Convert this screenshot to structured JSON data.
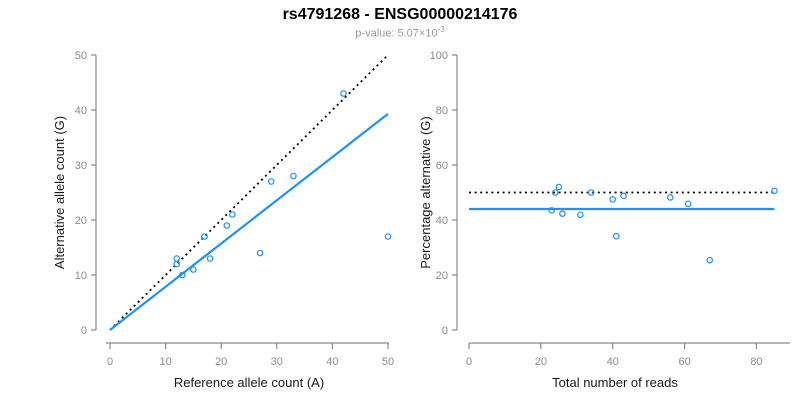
{
  "header": {
    "title": "rs4791268 - ENSG00000214176",
    "pvalue_base": "p-value: 5.07×10",
    "pvalue_exponent": "-3"
  },
  "colors": {
    "accent_blue": "#1E90FF",
    "dotted_line_black": "#000000",
    "axis_gray": "#8a8a8a",
    "tick_label_gray": "#8c8c8c",
    "axis_title_color": "#1a1a1a",
    "subtitle_gray": "#9a9a9a"
  },
  "chart_data": [
    {
      "type": "scatter",
      "name": "allele-counts",
      "xlabel": "Reference allele count (A)",
      "ylabel": "Alternative allele count (G)",
      "xlim": [
        0,
        50
      ],
      "ylim": [
        0,
        50
      ],
      "xticks": [
        0,
        10,
        20,
        30,
        40,
        50
      ],
      "yticks": [
        0,
        10,
        20,
        30,
        40,
        50
      ],
      "grid": false,
      "points": [
        [
          12,
          12
        ],
        [
          12,
          13
        ],
        [
          13,
          10
        ],
        [
          15,
          11
        ],
        [
          17,
          17
        ],
        [
          18,
          13
        ],
        [
          21,
          19
        ],
        [
          22,
          21
        ],
        [
          27,
          14
        ],
        [
          29,
          27
        ],
        [
          33,
          28
        ],
        [
          42,
          43
        ],
        [
          50,
          17
        ]
      ],
      "lines": [
        {
          "name": "identity-line",
          "style": "dotted",
          "color": "#000000",
          "from": [
            0,
            0
          ],
          "to": [
            50,
            50
          ]
        },
        {
          "name": "fit-line",
          "style": "solid",
          "color": "#1E90FF",
          "from": [
            0,
            0
          ],
          "to": [
            50,
            39.3
          ]
        }
      ]
    },
    {
      "type": "scatter",
      "name": "percentage-alternative",
      "xlabel": "Total number of reads",
      "ylabel": "Percentage alternative (G)",
      "xlim": [
        0,
        89
      ],
      "ylim": [
        0,
        100
      ],
      "xticks": [
        0,
        20,
        40,
        60,
        80
      ],
      "yticks": [
        0,
        20,
        40,
        60,
        80,
        100
      ],
      "grid": false,
      "points": [
        [
          23,
          43.5
        ],
        [
          24,
          50
        ],
        [
          25,
          52
        ],
        [
          26,
          42.3
        ],
        [
          31,
          41.9
        ],
        [
          34,
          50
        ],
        [
          40,
          47.5
        ],
        [
          41,
          34.1
        ],
        [
          43,
          48.8
        ],
        [
          56,
          48.2
        ],
        [
          61,
          45.9
        ],
        [
          67,
          25.4
        ],
        [
          85,
          50.6
        ]
      ],
      "lines": [
        {
          "name": "expected-50pct-line",
          "style": "dotted",
          "color": "#000000",
          "from": [
            0,
            50
          ],
          "to": [
            85,
            50
          ]
        },
        {
          "name": "mean-fit-line",
          "style": "solid",
          "color": "#1E90FF",
          "from": [
            0,
            44
          ],
          "to": [
            85,
            44
          ]
        }
      ]
    }
  ]
}
